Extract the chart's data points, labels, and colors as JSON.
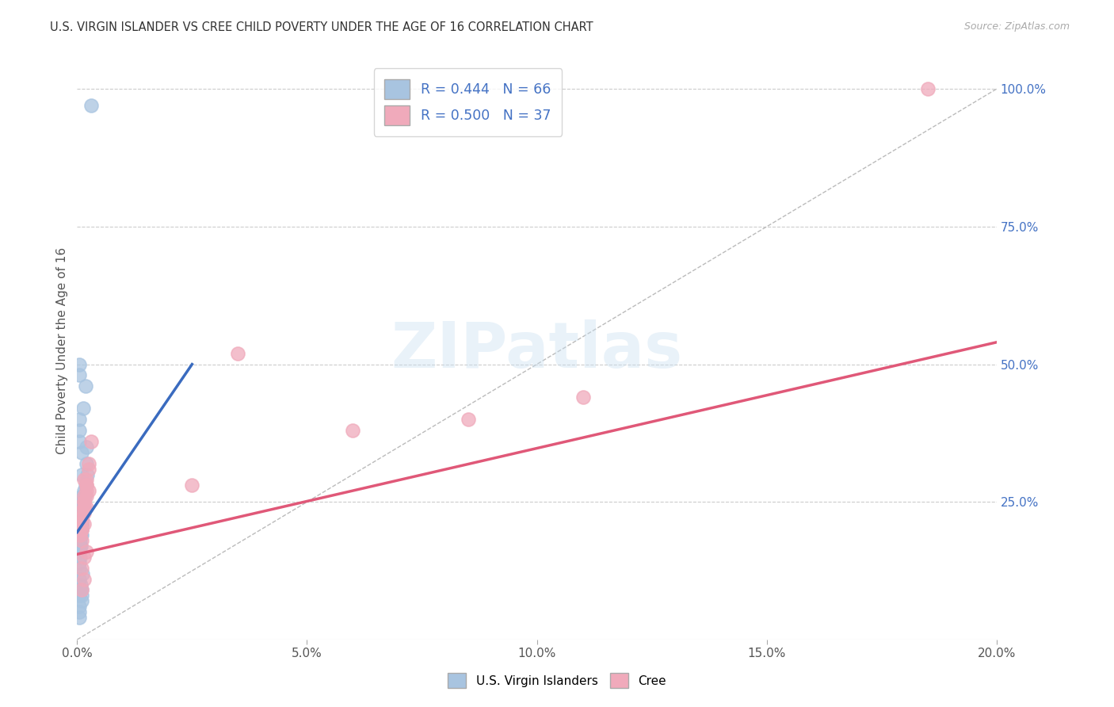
{
  "title": "U.S. VIRGIN ISLANDER VS CREE CHILD POVERTY UNDER THE AGE OF 16 CORRELATION CHART",
  "source": "Source: ZipAtlas.com",
  "ylabel": "Child Poverty Under the Age of 16",
  "xlim": [
    0.0,
    0.2
  ],
  "ylim": [
    0.0,
    1.05
  ],
  "xtick_labels": [
    "0.0%",
    "5.0%",
    "10.0%",
    "15.0%",
    "20.0%"
  ],
  "xtick_values": [
    0.0,
    0.05,
    0.1,
    0.15,
    0.2
  ],
  "ytick_labels_right": [
    "25.0%",
    "50.0%",
    "75.0%",
    "100.0%"
  ],
  "ytick_values_right": [
    0.25,
    0.5,
    0.75,
    1.0
  ],
  "grid_color": "#cccccc",
  "background_color": "#ffffff",
  "watermark_text": "ZIPatlas",
  "blue_series": {
    "name": "U.S. Virgin Islanders",
    "R": 0.444,
    "N": 66,
    "dot_color": "#a8c4e0",
    "line_color": "#3a6bbf",
    "x": [
      0.0005,
      0.001,
      0.001,
      0.0008,
      0.0012,
      0.0006,
      0.001,
      0.0015,
      0.001,
      0.0008,
      0.0005,
      0.0012,
      0.0018,
      0.0022,
      0.0015,
      0.001,
      0.002,
      0.0016,
      0.0008,
      0.0012,
      0.0006,
      0.0008,
      0.001,
      0.0007,
      0.001,
      0.0015,
      0.0006,
      0.0009,
      0.0014,
      0.0007,
      0.0011,
      0.0008,
      0.001,
      0.0012,
      0.0006,
      0.0009,
      0.0014,
      0.002,
      0.0011,
      0.0005,
      0.0006,
      0.0009,
      0.0005,
      0.0008,
      0.0005,
      0.0005,
      0.0007,
      0.0008,
      0.0012,
      0.0005,
      0.0009,
      0.0005,
      0.001,
      0.0009,
      0.0005,
      0.0005,
      0.0014,
      0.0018,
      0.0005,
      0.0005,
      0.003,
      0.001,
      0.0005,
      0.0005,
      0.0005,
      0.0009
    ],
    "y": [
      0.22,
      0.25,
      0.24,
      0.2,
      0.23,
      0.19,
      0.26,
      0.27,
      0.21,
      0.22,
      0.2,
      0.25,
      0.28,
      0.3,
      0.24,
      0.21,
      0.35,
      0.26,
      0.2,
      0.23,
      0.21,
      0.19,
      0.22,
      0.2,
      0.24,
      0.26,
      0.18,
      0.21,
      0.25,
      0.19,
      0.23,
      0.2,
      0.22,
      0.24,
      0.17,
      0.2,
      0.26,
      0.32,
      0.23,
      0.16,
      0.15,
      0.19,
      0.14,
      0.17,
      0.13,
      0.11,
      0.09,
      0.1,
      0.12,
      0.08,
      0.07,
      0.06,
      0.08,
      0.09,
      0.05,
      0.04,
      0.42,
      0.46,
      0.5,
      0.48,
      0.97,
      0.34,
      0.36,
      0.4,
      0.38,
      0.3
    ],
    "trend_x": [
      0.0,
      0.025
    ],
    "trend_y": [
      0.195,
      0.5
    ]
  },
  "pink_series": {
    "name": "Cree",
    "R": 0.5,
    "N": 37,
    "dot_color": "#f0aabb",
    "line_color": "#e05878",
    "x": [
      0.0006,
      0.001,
      0.0015,
      0.001,
      0.0015,
      0.002,
      0.0015,
      0.001,
      0.0006,
      0.0015,
      0.001,
      0.002,
      0.0015,
      0.0025,
      0.002,
      0.0015,
      0.001,
      0.002,
      0.0025,
      0.003,
      0.0015,
      0.002,
      0.001,
      0.0015,
      0.002,
      0.0025,
      0.0015,
      0.001,
      0.0015,
      0.002,
      0.025,
      0.06,
      0.035,
      0.085,
      0.11,
      0.001,
      0.185
    ],
    "y": [
      0.21,
      0.23,
      0.25,
      0.2,
      0.24,
      0.27,
      0.29,
      0.22,
      0.19,
      0.26,
      0.21,
      0.28,
      0.24,
      0.31,
      0.29,
      0.25,
      0.2,
      0.28,
      0.32,
      0.36,
      0.23,
      0.26,
      0.18,
      0.21,
      0.24,
      0.27,
      0.15,
      0.13,
      0.11,
      0.16,
      0.28,
      0.38,
      0.52,
      0.4,
      0.44,
      0.09,
      1.0
    ],
    "trend_x": [
      0.0,
      0.2
    ],
    "trend_y": [
      0.155,
      0.54
    ]
  },
  "reference_line": {
    "color": "#bbbbbb",
    "style": "--"
  }
}
